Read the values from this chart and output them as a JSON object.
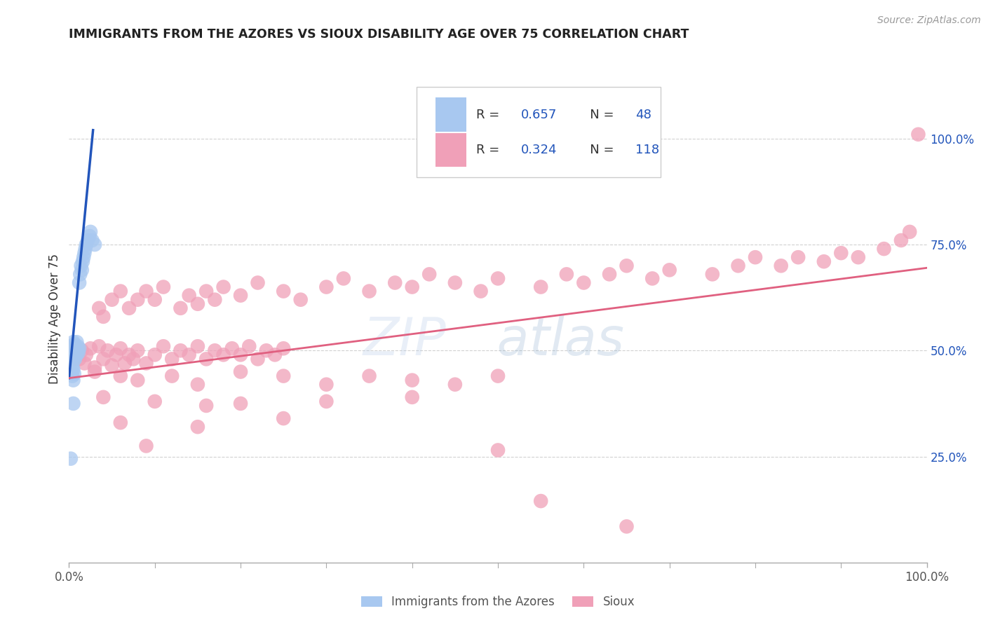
{
  "title": "IMMIGRANTS FROM THE AZORES VS SIOUX DISABILITY AGE OVER 75 CORRELATION CHART",
  "source_text": "Source: ZipAtlas.com",
  "ylabel": "Disability Age Over 75",
  "xlim": [
    0.0,
    1.0
  ],
  "ylim": [
    0.0,
    1.15
  ],
  "xtick_labels": [
    "0.0%",
    "100.0%"
  ],
  "ytick_labels": [
    "25.0%",
    "50.0%",
    "75.0%",
    "100.0%"
  ],
  "ytick_positions": [
    0.25,
    0.5,
    0.75,
    1.0
  ],
  "blue_color": "#A8C8F0",
  "pink_color": "#F0A0B8",
  "blue_line_color": "#2255BB",
  "pink_line_color": "#E06080",
  "background_color": "#FFFFFF",
  "blue_scatter": [
    [
      0.003,
      0.485
    ],
    [
      0.003,
      0.5
    ],
    [
      0.004,
      0.51
    ],
    [
      0.004,
      0.495
    ],
    [
      0.004,
      0.48
    ],
    [
      0.004,
      0.505
    ],
    [
      0.005,
      0.49
    ],
    [
      0.005,
      0.52
    ],
    [
      0.005,
      0.5
    ],
    [
      0.005,
      0.475
    ],
    [
      0.006,
      0.51
    ],
    [
      0.006,
      0.495
    ],
    [
      0.006,
      0.505
    ],
    [
      0.006,
      0.515
    ],
    [
      0.007,
      0.49
    ],
    [
      0.007,
      0.5
    ],
    [
      0.007,
      0.48
    ],
    [
      0.008,
      0.51
    ],
    [
      0.008,
      0.495
    ],
    [
      0.008,
      0.505
    ],
    [
      0.009,
      0.49
    ],
    [
      0.009,
      0.52
    ],
    [
      0.01,
      0.5
    ],
    [
      0.01,
      0.51
    ],
    [
      0.011,
      0.495
    ],
    [
      0.012,
      0.505
    ],
    [
      0.012,
      0.66
    ],
    [
      0.013,
      0.68
    ],
    [
      0.014,
      0.7
    ],
    [
      0.015,
      0.69
    ],
    [
      0.016,
      0.71
    ],
    [
      0.017,
      0.72
    ],
    [
      0.018,
      0.73
    ],
    [
      0.019,
      0.74
    ],
    [
      0.02,
      0.75
    ],
    [
      0.022,
      0.76
    ],
    [
      0.024,
      0.77
    ],
    [
      0.025,
      0.78
    ],
    [
      0.027,
      0.76
    ],
    [
      0.03,
      0.75
    ],
    [
      0.003,
      0.45
    ],
    [
      0.004,
      0.46
    ],
    [
      0.004,
      0.44
    ],
    [
      0.005,
      0.43
    ],
    [
      0.005,
      0.455
    ],
    [
      0.006,
      0.445
    ],
    [
      0.002,
      0.245
    ],
    [
      0.005,
      0.375
    ]
  ],
  "pink_scatter": [
    [
      0.004,
      0.49
    ],
    [
      0.005,
      0.505
    ],
    [
      0.006,
      0.48
    ],
    [
      0.007,
      0.51
    ],
    [
      0.008,
      0.495
    ],
    [
      0.009,
      0.505
    ],
    [
      0.01,
      0.49
    ],
    [
      0.012,
      0.48
    ],
    [
      0.015,
      0.5
    ],
    [
      0.018,
      0.47
    ],
    [
      0.02,
      0.49
    ],
    [
      0.025,
      0.505
    ],
    [
      0.03,
      0.46
    ],
    [
      0.035,
      0.51
    ],
    [
      0.04,
      0.48
    ],
    [
      0.045,
      0.5
    ],
    [
      0.05,
      0.465
    ],
    [
      0.055,
      0.49
    ],
    [
      0.06,
      0.505
    ],
    [
      0.065,
      0.47
    ],
    [
      0.07,
      0.49
    ],
    [
      0.075,
      0.48
    ],
    [
      0.08,
      0.5
    ],
    [
      0.09,
      0.47
    ],
    [
      0.1,
      0.49
    ],
    [
      0.11,
      0.51
    ],
    [
      0.12,
      0.48
    ],
    [
      0.13,
      0.5
    ],
    [
      0.14,
      0.49
    ],
    [
      0.15,
      0.51
    ],
    [
      0.16,
      0.48
    ],
    [
      0.17,
      0.5
    ],
    [
      0.18,
      0.49
    ],
    [
      0.19,
      0.505
    ],
    [
      0.2,
      0.49
    ],
    [
      0.21,
      0.51
    ],
    [
      0.22,
      0.48
    ],
    [
      0.23,
      0.5
    ],
    [
      0.24,
      0.49
    ],
    [
      0.25,
      0.505
    ],
    [
      0.035,
      0.6
    ],
    [
      0.04,
      0.58
    ],
    [
      0.05,
      0.62
    ],
    [
      0.06,
      0.64
    ],
    [
      0.07,
      0.6
    ],
    [
      0.08,
      0.62
    ],
    [
      0.09,
      0.64
    ],
    [
      0.1,
      0.62
    ],
    [
      0.11,
      0.65
    ],
    [
      0.13,
      0.6
    ],
    [
      0.14,
      0.63
    ],
    [
      0.15,
      0.61
    ],
    [
      0.16,
      0.64
    ],
    [
      0.17,
      0.62
    ],
    [
      0.18,
      0.65
    ],
    [
      0.2,
      0.63
    ],
    [
      0.22,
      0.66
    ],
    [
      0.25,
      0.64
    ],
    [
      0.27,
      0.62
    ],
    [
      0.3,
      0.65
    ],
    [
      0.32,
      0.67
    ],
    [
      0.35,
      0.64
    ],
    [
      0.38,
      0.66
    ],
    [
      0.4,
      0.65
    ],
    [
      0.42,
      0.68
    ],
    [
      0.45,
      0.66
    ],
    [
      0.48,
      0.64
    ],
    [
      0.5,
      0.67
    ],
    [
      0.55,
      0.65
    ],
    [
      0.58,
      0.68
    ],
    [
      0.6,
      0.66
    ],
    [
      0.63,
      0.68
    ],
    [
      0.65,
      0.7
    ],
    [
      0.68,
      0.67
    ],
    [
      0.7,
      0.69
    ],
    [
      0.75,
      0.68
    ],
    [
      0.78,
      0.7
    ],
    [
      0.8,
      0.72
    ],
    [
      0.83,
      0.7
    ],
    [
      0.85,
      0.72
    ],
    [
      0.88,
      0.71
    ],
    [
      0.9,
      0.73
    ],
    [
      0.92,
      0.72
    ],
    [
      0.95,
      0.74
    ],
    [
      0.97,
      0.76
    ],
    [
      0.98,
      0.78
    ],
    [
      0.99,
      1.01
    ],
    [
      0.03,
      0.45
    ],
    [
      0.06,
      0.44
    ],
    [
      0.08,
      0.43
    ],
    [
      0.12,
      0.44
    ],
    [
      0.15,
      0.42
    ],
    [
      0.2,
      0.45
    ],
    [
      0.25,
      0.44
    ],
    [
      0.3,
      0.42
    ],
    [
      0.35,
      0.44
    ],
    [
      0.4,
      0.43
    ],
    [
      0.45,
      0.42
    ],
    [
      0.5,
      0.44
    ],
    [
      0.04,
      0.39
    ],
    [
      0.1,
      0.38
    ],
    [
      0.16,
      0.37
    ],
    [
      0.2,
      0.375
    ],
    [
      0.3,
      0.38
    ],
    [
      0.4,
      0.39
    ],
    [
      0.06,
      0.33
    ],
    [
      0.15,
      0.32
    ],
    [
      0.25,
      0.34
    ],
    [
      0.09,
      0.275
    ],
    [
      0.5,
      0.265
    ],
    [
      0.55,
      0.145
    ],
    [
      0.65,
      0.085
    ]
  ],
  "blue_trend_x": [
    0.0,
    0.028
  ],
  "blue_trend_y": [
    0.435,
    1.02
  ],
  "pink_trend_x": [
    0.0,
    1.0
  ],
  "pink_trend_y": [
    0.435,
    0.695
  ]
}
